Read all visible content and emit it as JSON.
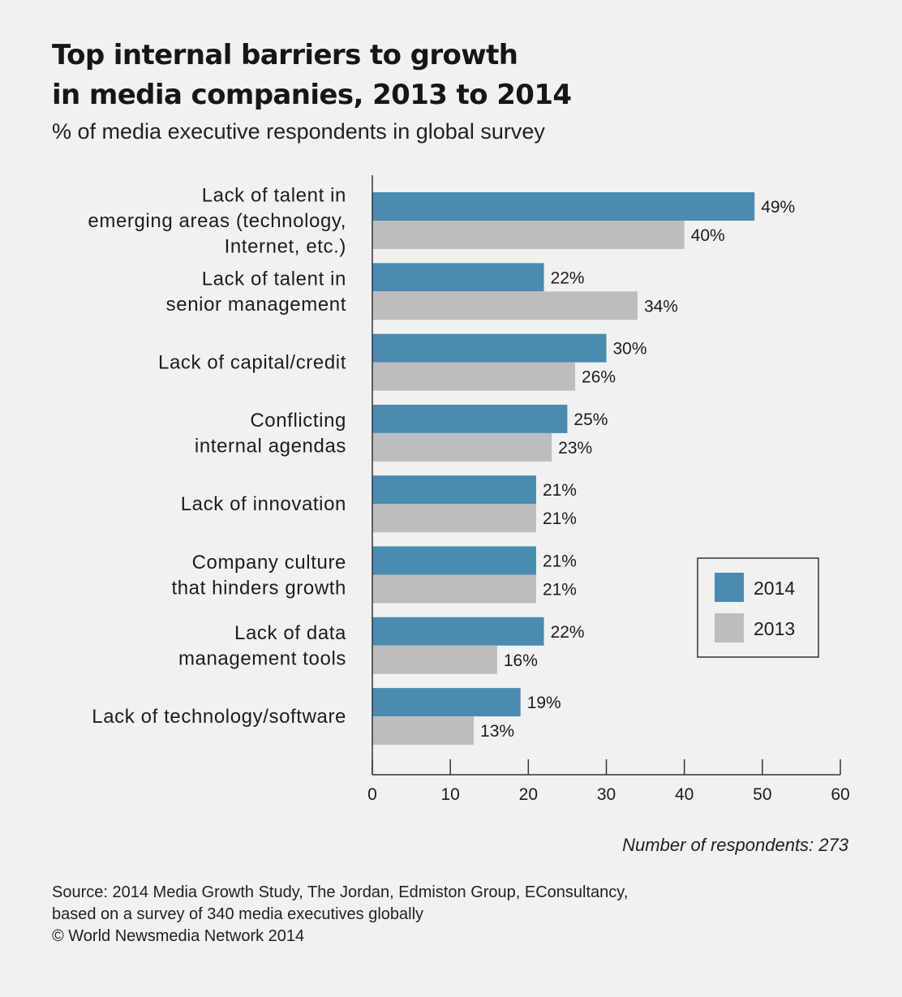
{
  "title": "Top internal barriers to growth\nin media companies, 2013 to 2014",
  "subtitle": "% of media executive respondents in global survey",
  "colors": {
    "2014": "#4a8bb0",
    "2013": "#bdbdbf",
    "background": "#f1f1f1",
    "axis": "#333333"
  },
  "chart_data": {
    "type": "bar",
    "orientation": "horizontal",
    "categories": [
      [
        "Lack of talent in",
        "emerging areas (technology,",
        "Internet, etc.)"
      ],
      [
        "Lack of talent in",
        "senior management"
      ],
      [
        "Lack of capital/credit"
      ],
      [
        "Conflicting",
        "internal agendas"
      ],
      [
        "Lack of innovation"
      ],
      [
        "Company culture",
        "that hinders growth"
      ],
      [
        "Lack of data",
        "management tools"
      ],
      [
        "Lack of technology/software"
      ]
    ],
    "series": [
      {
        "name": "2014",
        "values": [
          49,
          22,
          30,
          25,
          21,
          21,
          22,
          19
        ]
      },
      {
        "name": "2013",
        "values": [
          40,
          34,
          26,
          23,
          21,
          21,
          16,
          13
        ]
      }
    ],
    "value_suffix": "%",
    "xlim": [
      0,
      60
    ],
    "xticks": [
      0,
      10,
      20,
      30,
      40,
      50,
      60
    ],
    "legend": [
      "2014",
      "2013"
    ],
    "legend_position": "right",
    "grid": false
  },
  "note": "Number of respondents: 273",
  "source": [
    "Source: 2014 Media Growth Study, The Jordan, Edmiston Group, EConsultancy,",
    "based on a survey of 340 media executives globally",
    "© World Newsmedia Network 2014"
  ]
}
